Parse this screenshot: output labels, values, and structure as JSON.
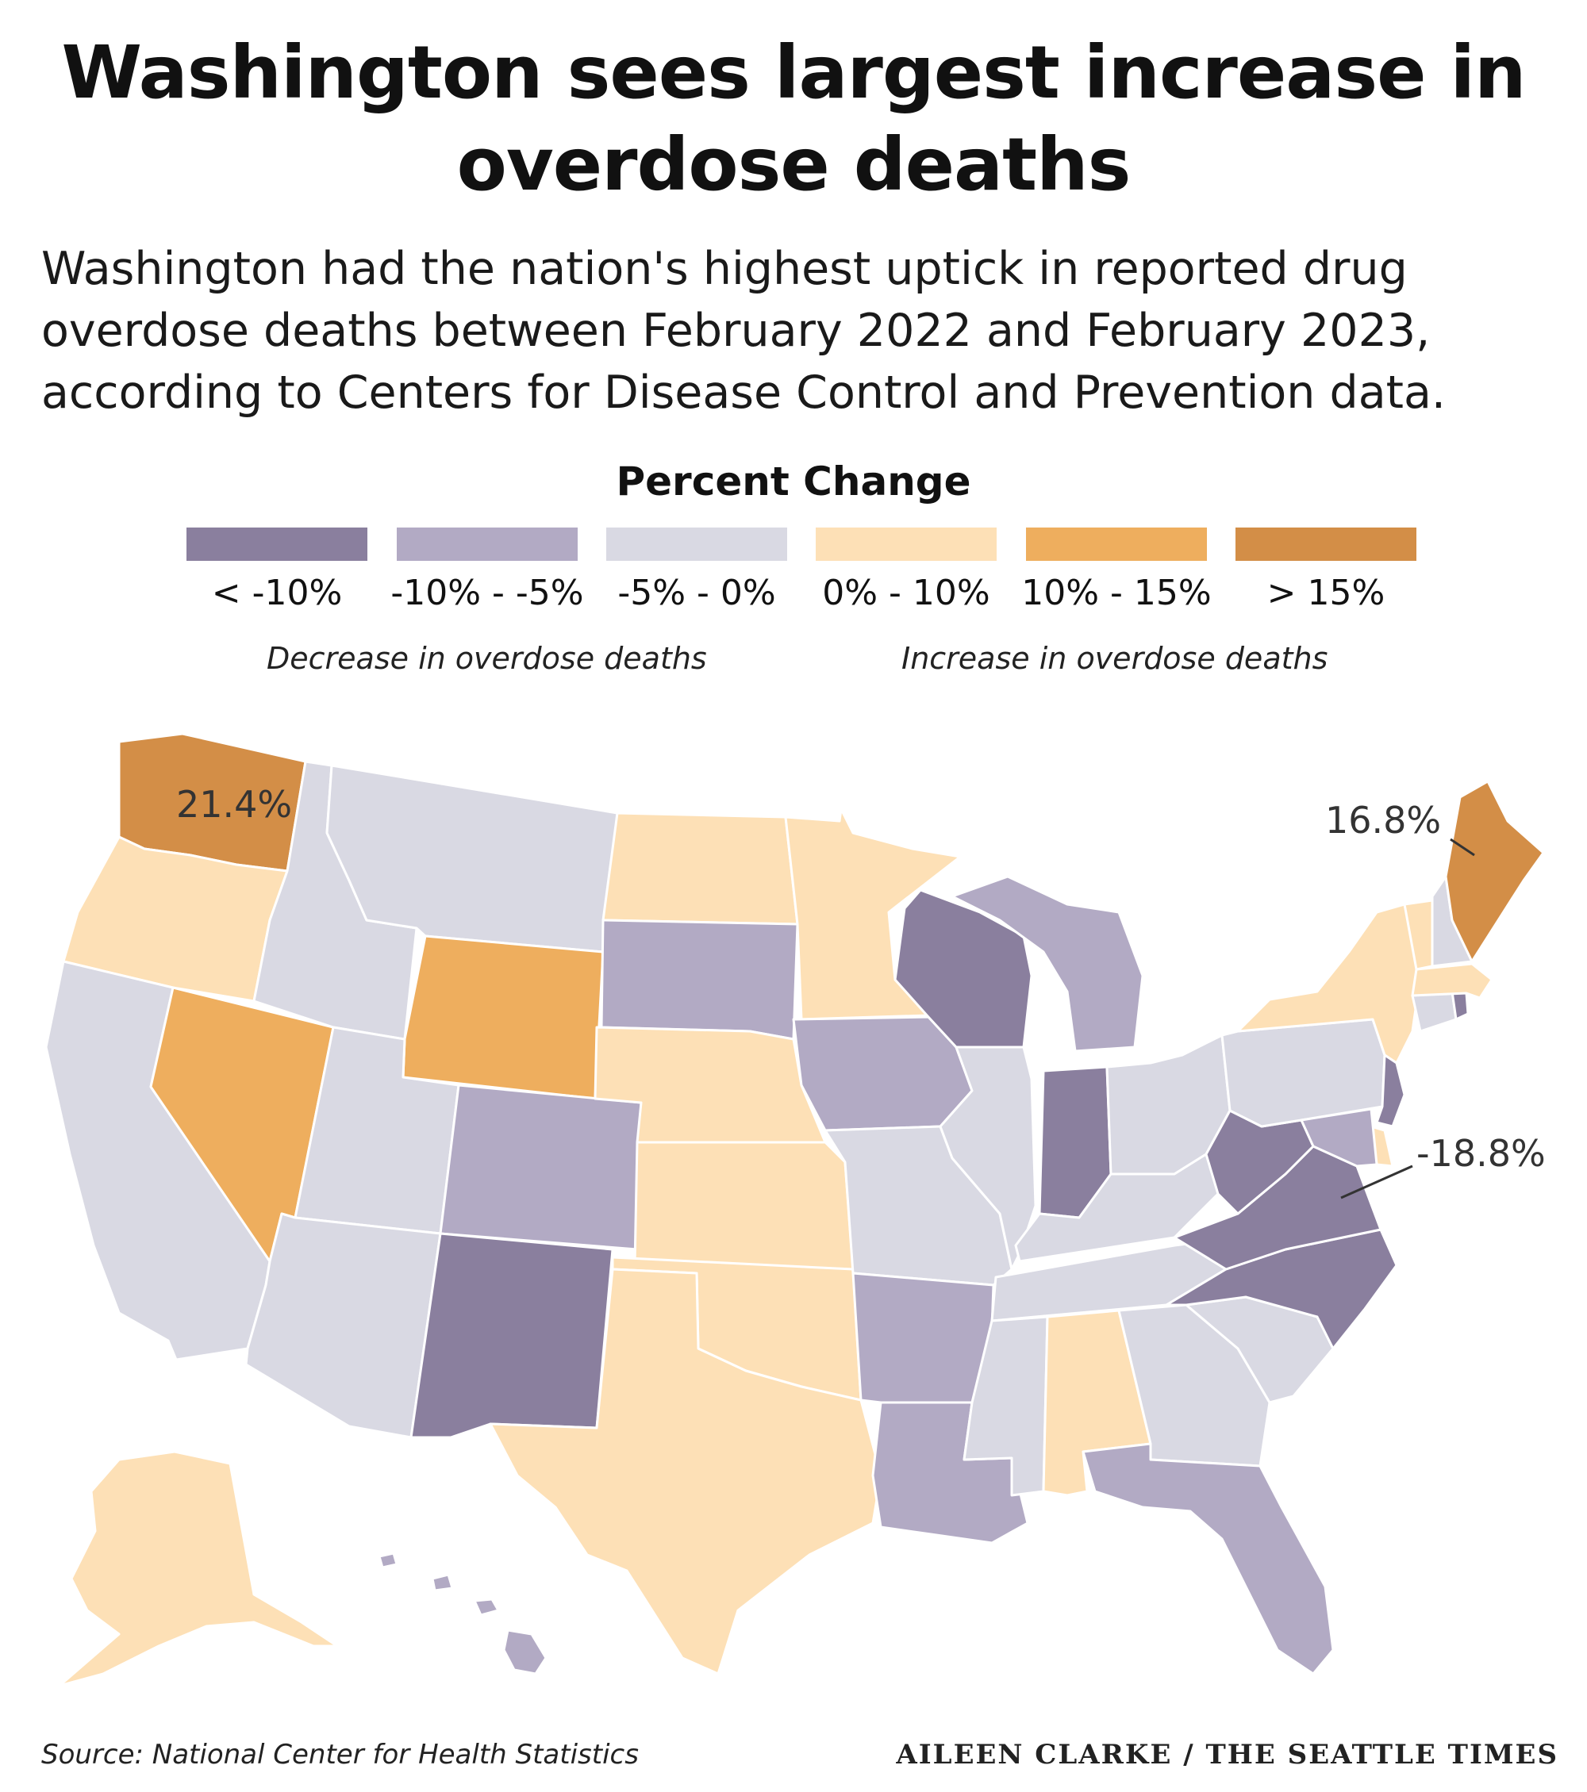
{
  "title": "Washington sees largest increase in overdose deaths",
  "subtitle": "Washington had the nation's highest uptick in reported drug overdose deaths between February 2022 and February 2023, according to Centers for Disease Control and Prevention data.",
  "legend": {
    "title": "Percent Change",
    "bins": [
      {
        "label": "< -10%",
        "color": "#8a7f9e"
      },
      {
        "label": "-10% - -5%",
        "color": "#b2aac4"
      },
      {
        "label": "-5% - 0%",
        "color": "#d9d9e3"
      },
      {
        "label": "0% - 10%",
        "color": "#fde0b6"
      },
      {
        "label": "10% - 15%",
        "color": "#eeae5e"
      },
      {
        "label": "> 15%",
        "color": "#d38e47"
      }
    ],
    "decrease_note": "Decrease in overdose deaths",
    "increase_note": "Increase in overdose deaths"
  },
  "callouts": {
    "washington": "21.4%",
    "maine": "16.8%",
    "virginia": "-18.8%"
  },
  "states": {
    "WA": {
      "bin": 5
    },
    "OR": {
      "bin": 3
    },
    "CA": {
      "bin": 2
    },
    "NV": {
      "bin": 4
    },
    "ID": {
      "bin": 2
    },
    "MT": {
      "bin": 2
    },
    "WY": {
      "bin": 4
    },
    "UT": {
      "bin": 2
    },
    "AZ": {
      "bin": 2
    },
    "CO": {
      "bin": 1
    },
    "NM": {
      "bin": 0
    },
    "ND": {
      "bin": 3
    },
    "SD": {
      "bin": 1
    },
    "NE": {
      "bin": 3
    },
    "KS": {
      "bin": 3
    },
    "OK": {
      "bin": 3
    },
    "TX": {
      "bin": 3
    },
    "MN": {
      "bin": 3
    },
    "IA": {
      "bin": 1
    },
    "MO": {
      "bin": 2
    },
    "AR": {
      "bin": 1
    },
    "LA": {
      "bin": 1
    },
    "WI": {
      "bin": 0
    },
    "IL": {
      "bin": 2
    },
    "MI": {
      "bin": 1
    },
    "IN": {
      "bin": 0
    },
    "OH": {
      "bin": 2
    },
    "KY": {
      "bin": 2
    },
    "TN": {
      "bin": 2
    },
    "MS": {
      "bin": 2
    },
    "AL": {
      "bin": 3
    },
    "GA": {
      "bin": 2
    },
    "FL": {
      "bin": 1
    },
    "SC": {
      "bin": 2
    },
    "NC": {
      "bin": 0
    },
    "VA": {
      "bin": 0
    },
    "WV": {
      "bin": 0
    },
    "PA": {
      "bin": 2
    },
    "NY": {
      "bin": 3
    },
    "NJ": {
      "bin": 0
    },
    "DE": {
      "bin": 3
    },
    "MD": {
      "bin": 1
    },
    "CT": {
      "bin": 2
    },
    "RI": {
      "bin": 0
    },
    "MA": {
      "bin": 3
    },
    "VT": {
      "bin": 3
    },
    "NH": {
      "bin": 2
    },
    "ME": {
      "bin": 5
    },
    "AK": {
      "bin": 3
    },
    "HI": {
      "bin": 1
    }
  },
  "footer": {
    "source": "Source: National Center for Health Statistics",
    "credit": "AILEEN CLARKE / THE SEATTLE TIMES"
  }
}
